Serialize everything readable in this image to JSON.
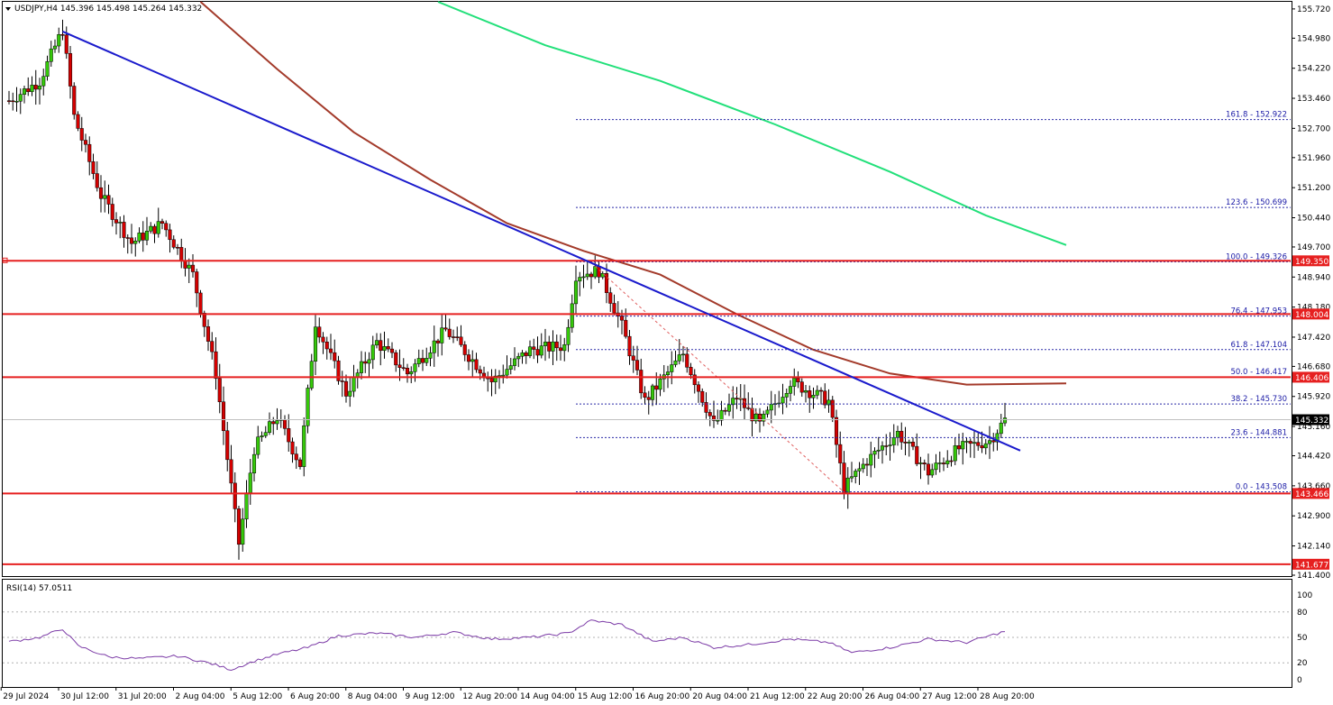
{
  "colors": {
    "bull": "#35c80a",
    "bear": "#d40000",
    "wick": "#000000",
    "trendline": "#1a1acc",
    "ma_red": "#a33a2a",
    "ma_green": "#22e07a",
    "hline": "#e62020",
    "fib": "#2a2aa8",
    "fib_diag": "#e06060",
    "rsi": "#7b3aa6"
  },
  "chart_data": [
    {
      "type": "candlestick",
      "title": "USDJPY,H4  145.396 145.498 145.264 145.332",
      "ylim": [
        141.4,
        155.9
      ],
      "xlim": [
        0,
        260
      ],
      "grid": false,
      "y_ticks": [
        "155.720",
        "154.980",
        "154.220",
        "153.460",
        "152.700",
        "151.960",
        "151.200",
        "150.440",
        "149.700",
        "148.940",
        "148.180",
        "147.420",
        "146.680",
        "145.920",
        "145.160",
        "144.420",
        "143.660",
        "142.900",
        "142.140",
        "141.400"
      ],
      "x_ticks": [
        {
          "index": 5,
          "label": "29 Jul 2024"
        },
        {
          "index": 20,
          "label": "30 Jul 12:00"
        },
        {
          "index": 35,
          "label": "31 Jul 20:00"
        },
        {
          "index": 50,
          "label": "2 Aug 04:00"
        },
        {
          "index": 65,
          "label": "5 Aug 12:00"
        },
        {
          "index": 80,
          "label": "6 Aug 20:00"
        },
        {
          "index": 95,
          "label": "8 Aug 04:00"
        },
        {
          "index": 110,
          "label": "9 Aug 12:00"
        },
        {
          "index": 125,
          "label": "12 Aug 20:00"
        },
        {
          "index": 140,
          "label": "14 Aug 04:00"
        },
        {
          "index": 155,
          "label": "15 Aug 12:00"
        },
        {
          "index": 170,
          "label": "16 Aug 20:00"
        },
        {
          "index": 185,
          "label": "20 Aug 04:00"
        },
        {
          "index": 200,
          "label": "21 Aug 12:00"
        },
        {
          "index": 215,
          "label": "22 Aug 20:00"
        },
        {
          "index": 230,
          "label": "26 Aug 04:00"
        },
        {
          "index": 245,
          "label": "27 Aug 12:00"
        },
        {
          "index": 260,
          "label": "28 Aug 20:00"
        }
      ],
      "price_waypoints": [
        {
          "i": 0,
          "p": 153.4
        },
        {
          "i": 8,
          "p": 153.9
        },
        {
          "i": 14,
          "p": 155.2
        },
        {
          "i": 17,
          "p": 153.0
        },
        {
          "i": 24,
          "p": 151.0
        },
        {
          "i": 32,
          "p": 149.8
        },
        {
          "i": 40,
          "p": 150.3
        },
        {
          "i": 48,
          "p": 149.0
        },
        {
          "i": 54,
          "p": 146.5
        },
        {
          "i": 60,
          "p": 142.2
        },
        {
          "i": 64,
          "p": 144.6
        },
        {
          "i": 70,
          "p": 145.4
        },
        {
          "i": 76,
          "p": 144.2
        },
        {
          "i": 80,
          "p": 147.8
        },
        {
          "i": 88,
          "p": 146.0
        },
        {
          "i": 96,
          "p": 147.3
        },
        {
          "i": 104,
          "p": 146.5
        },
        {
          "i": 114,
          "p": 147.6
        },
        {
          "i": 126,
          "p": 146.3
        },
        {
          "i": 136,
          "p": 147.1
        },
        {
          "i": 145,
          "p": 147.2
        },
        {
          "i": 148,
          "p": 149.0
        },
        {
          "i": 154,
          "p": 149.1
        },
        {
          "i": 160,
          "p": 147.7
        },
        {
          "i": 166,
          "p": 145.8
        },
        {
          "i": 176,
          "p": 147.0
        },
        {
          "i": 184,
          "p": 145.2
        },
        {
          "i": 190,
          "p": 145.9
        },
        {
          "i": 196,
          "p": 145.2
        },
        {
          "i": 204,
          "p": 146.3
        },
        {
          "i": 214,
          "p": 145.8
        },
        {
          "i": 218,
          "p": 143.6
        },
        {
          "i": 224,
          "p": 144.3
        },
        {
          "i": 232,
          "p": 145.0
        },
        {
          "i": 240,
          "p": 144.0
        },
        {
          "i": 248,
          "p": 144.6
        },
        {
          "i": 256,
          "p": 144.8
        },
        {
          "i": 260,
          "p": 145.33
        }
      ],
      "horizontal_lines": [
        {
          "price": 149.35,
          "label": "149.350"
        },
        {
          "price": 148.004,
          "label": "148.004"
        },
        {
          "price": 146.406,
          "label": "146.406"
        },
        {
          "price": 143.466,
          "label": "143.466"
        },
        {
          "price": 141.677,
          "label": "141.677"
        }
      ],
      "last_price": {
        "price": 145.332,
        "label": "145.332"
      },
      "fibonacci": {
        "start_index": 148,
        "end_index": 276,
        "levels": [
          {
            "price": 152.922,
            "label": "161.8 - 152.922"
          },
          {
            "price": 150.699,
            "label": "123.6 - 150.699"
          },
          {
            "price": 149.326,
            "label": "100.0 - 149.326"
          },
          {
            "price": 147.953,
            "label": "76.4 - 147.953"
          },
          {
            "price": 147.104,
            "label": "61.8 - 147.104"
          },
          {
            "price": 146.417,
            "label": "50.0 - 146.417"
          },
          {
            "price": 145.73,
            "label": "38.2 - 145.730"
          },
          {
            "price": 144.881,
            "label": "23.6 - 144.881"
          },
          {
            "price": 143.508,
            "label": "0.0 - 143.508"
          }
        ],
        "swing": {
          "i1": 152,
          "p1": 149.3,
          "i2": 218,
          "p2": 143.5
        }
      },
      "trendline": {
        "i1": 14,
        "p1": 155.15,
        "i2": 264,
        "p2": 144.55
      },
      "ma_red": [
        {
          "i": 50,
          "p": 155.9
        },
        {
          "i": 70,
          "p": 154.2
        },
        {
          "i": 90,
          "p": 152.6
        },
        {
          "i": 110,
          "p": 151.4
        },
        {
          "i": 130,
          "p": 150.3
        },
        {
          "i": 150,
          "p": 149.6
        },
        {
          "i": 170,
          "p": 149.0
        },
        {
          "i": 190,
          "p": 148.0
        },
        {
          "i": 210,
          "p": 147.1
        },
        {
          "i": 230,
          "p": 146.5
        },
        {
          "i": 250,
          "p": 146.22
        },
        {
          "i": 276,
          "p": 146.25
        }
      ],
      "ma_green": [
        {
          "i": 112,
          "p": 155.9
        },
        {
          "i": 140,
          "p": 154.8
        },
        {
          "i": 170,
          "p": 153.9
        },
        {
          "i": 200,
          "p": 152.8
        },
        {
          "i": 230,
          "p": 151.6
        },
        {
          "i": 255,
          "p": 150.5
        },
        {
          "i": 276,
          "p": 149.75
        }
      ]
    },
    {
      "type": "line",
      "title": "RSI(14) 57.0511",
      "ylim": [
        0,
        100
      ],
      "y_ticks": [
        "100",
        "80",
        "50",
        "20",
        "0"
      ],
      "levels": [
        80,
        50,
        20
      ],
      "series": [
        {
          "name": "RSI(14)",
          "values_waypoints": [
            {
              "i": 0,
              "v": 45
            },
            {
              "i": 8,
              "v": 50
            },
            {
              "i": 14,
              "v": 60
            },
            {
              "i": 18,
              "v": 40
            },
            {
              "i": 26,
              "v": 27
            },
            {
              "i": 34,
              "v": 25
            },
            {
              "i": 44,
              "v": 28
            },
            {
              "i": 52,
              "v": 20
            },
            {
              "i": 58,
              "v": 12
            },
            {
              "i": 64,
              "v": 22
            },
            {
              "i": 70,
              "v": 30
            },
            {
              "i": 78,
              "v": 38
            },
            {
              "i": 86,
              "v": 52
            },
            {
              "i": 96,
              "v": 55
            },
            {
              "i": 106,
              "v": 50
            },
            {
              "i": 116,
              "v": 56
            },
            {
              "i": 126,
              "v": 48
            },
            {
              "i": 136,
              "v": 50
            },
            {
              "i": 146,
              "v": 55
            },
            {
              "i": 152,
              "v": 70
            },
            {
              "i": 160,
              "v": 65
            },
            {
              "i": 168,
              "v": 45
            },
            {
              "i": 176,
              "v": 50
            },
            {
              "i": 184,
              "v": 38
            },
            {
              "i": 194,
              "v": 42
            },
            {
              "i": 204,
              "v": 48
            },
            {
              "i": 214,
              "v": 44
            },
            {
              "i": 220,
              "v": 32
            },
            {
              "i": 230,
              "v": 38
            },
            {
              "i": 240,
              "v": 48
            },
            {
              "i": 250,
              "v": 44
            },
            {
              "i": 260,
              "v": 57.05
            }
          ]
        }
      ]
    }
  ]
}
